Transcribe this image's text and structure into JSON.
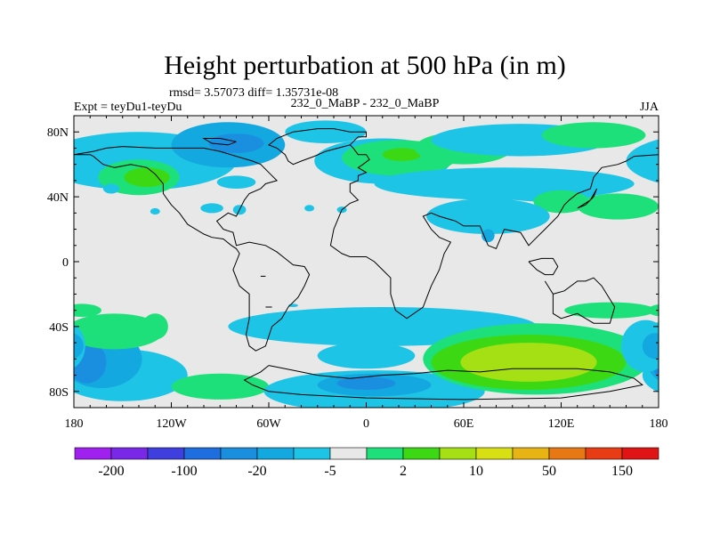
{
  "chart_data": {
    "type": "heatmap",
    "title": "Height perturbation at 500 hPa (in m)",
    "stats_text": "rmsd= 3.57073 diff= 1.35731e-08",
    "left_label": "Expt = teyDu1-teyDu",
    "center_label": "232_0_MaBP - 232_0_MaBP",
    "right_label": "JJA",
    "x_axis": {
      "range": [
        -180,
        180
      ],
      "ticks": [
        -180,
        -120,
        -60,
        0,
        60,
        120,
        180
      ],
      "tick_labels": [
        "180",
        "120W",
        "60W",
        "0",
        "60E",
        "120E",
        "180"
      ]
    },
    "y_axis": {
      "range": [
        -90,
        90
      ],
      "ticks": [
        80,
        40,
        0,
        -40,
        -80
      ],
      "tick_labels": [
        "80N",
        "40N",
        "0",
        "40S",
        "80S"
      ]
    },
    "colorbar": {
      "colors": [
        "#a020f0",
        "#7a28e8",
        "#3f3fe0",
        "#1e6ee0",
        "#1a8fe0",
        "#14a8e0",
        "#1ec4e6",
        "#e8e8e8",
        "#1ee07a",
        "#3cd814",
        "#a4e014",
        "#d8e014",
        "#e8b414",
        "#e87814",
        "#e83c14",
        "#e01414"
      ],
      "labels": [
        "-200",
        "-100",
        "-20",
        "-5",
        "2",
        "10",
        "50",
        "150"
      ]
    },
    "field": {
      "background": "#e8e8e8",
      "blobs": [
        {
          "lon": -140,
          "lat": 62,
          "rlon": 60,
          "rlat": 18,
          "level": 6
        },
        {
          "lon": -85,
          "lat": 72,
          "rlon": 35,
          "rlat": 14,
          "level": 5
        },
        {
          "lon": -80,
          "lat": 73,
          "rlon": 17,
          "rlat": 6,
          "level": 4
        },
        {
          "lon": -140,
          "lat": 52,
          "rlon": 25,
          "rlat": 11,
          "level": 8
        },
        {
          "lon": -135,
          "lat": 52,
          "rlon": 14,
          "rlat": 6,
          "level": 9
        },
        {
          "lon": -157,
          "lat": 45,
          "rlon": 5,
          "rlat": 3,
          "level": 6
        },
        {
          "lon": -130,
          "lat": 31,
          "rlon": 3,
          "rlat": 2,
          "level": 6
        },
        {
          "lon": -80,
          "lat": 49,
          "rlon": 12,
          "rlat": 4,
          "level": 6
        },
        {
          "lon": -25,
          "lat": 80,
          "rlon": 25,
          "rlat": 7,
          "level": 6
        },
        {
          "lon": 10,
          "lat": 62,
          "rlon": 42,
          "rlat": 14,
          "level": 6
        },
        {
          "lon": 20,
          "lat": 64,
          "rlon": 35,
          "rlat": 11,
          "level": 8
        },
        {
          "lon": 22,
          "lat": 66,
          "rlon": 12,
          "rlat": 4,
          "level": 9
        },
        {
          "lon": 60,
          "lat": 70,
          "rlon": 30,
          "rlat": 10,
          "level": 8
        },
        {
          "lon": 95,
          "lat": 75,
          "rlon": 55,
          "rlat": 10,
          "level": 6
        },
        {
          "lon": 140,
          "lat": 78,
          "rlon": 32,
          "rlat": 8,
          "level": 8
        },
        {
          "lon": 85,
          "lat": 48,
          "rlon": 80,
          "rlat": 10,
          "level": 6
        },
        {
          "lon": 110,
          "lat": 44,
          "rlon": 35,
          "rlat": 7,
          "level": 6
        },
        {
          "lon": 120,
          "lat": 37,
          "rlon": 17,
          "rlat": 7,
          "level": 8
        },
        {
          "lon": 155,
          "lat": 34,
          "rlon": 25,
          "rlat": 8,
          "level": 8
        },
        {
          "lon": -95,
          "lat": 33,
          "rlon": 7,
          "rlat": 3,
          "level": 6
        },
        {
          "lon": -78,
          "lat": 32,
          "rlon": 4,
          "rlat": 3,
          "level": 6
        },
        {
          "lon": -35,
          "lat": 33,
          "rlon": 3,
          "rlat": 2,
          "level": 6
        },
        {
          "lon": -15,
          "lat": 32,
          "rlon": 3,
          "rlat": 2,
          "level": 6
        },
        {
          "lon": 75,
          "lat": 28,
          "rlon": 38,
          "rlat": 11,
          "level": 6
        },
        {
          "lon": 75,
          "lat": 16,
          "rlon": 4,
          "rlat": 4,
          "level": 5
        },
        {
          "lon": 10,
          "lat": -40,
          "rlon": 95,
          "rlat": 12,
          "level": 6
        },
        {
          "lon": 0,
          "lat": -58,
          "rlon": 30,
          "rlat": 8,
          "level": 6
        },
        {
          "lon": -150,
          "lat": -70,
          "rlon": 40,
          "rlat": 16,
          "level": 6
        },
        {
          "lon": -163,
          "lat": -60,
          "rlon": 25,
          "rlat": 18,
          "level": 5
        },
        {
          "lon": -172,
          "lat": -62,
          "rlon": 12,
          "rlat": 13,
          "level": 4
        },
        {
          "lon": -90,
          "lat": -77,
          "rlon": 30,
          "rlat": 8,
          "level": 8
        },
        {
          "lon": -155,
          "lat": -43,
          "rlon": 30,
          "rlat": 11,
          "level": 8
        },
        {
          "lon": -130,
          "lat": -40,
          "rlon": 8,
          "rlat": 8,
          "level": 8
        },
        {
          "lon": -175,
          "lat": -30,
          "rlon": 12,
          "rlat": 4,
          "level": 8
        },
        {
          "lon": 5,
          "lat": -80,
          "rlon": 68,
          "rlat": 13,
          "level": 6
        },
        {
          "lon": 5,
          "lat": -76,
          "rlon": 35,
          "rlat": 7,
          "level": 5
        },
        {
          "lon": 0,
          "lat": -75,
          "rlon": 18,
          "rlat": 4,
          "level": 4
        },
        {
          "lon": 105,
          "lat": -60,
          "rlon": 70,
          "rlat": 22,
          "level": 8
        },
        {
          "lon": 100,
          "lat": -62,
          "rlon": 60,
          "rlat": 17,
          "level": 9
        },
        {
          "lon": 100,
          "lat": -62,
          "rlon": 42,
          "rlat": 12,
          "level": 10
        },
        {
          "lon": 150,
          "lat": -30,
          "rlon": 28,
          "rlat": 5,
          "level": 8
        },
        {
          "lon": 172,
          "lat": -52,
          "rlon": 15,
          "rlat": 16,
          "level": 6
        },
        {
          "lon": 178,
          "lat": -52,
          "rlon": 8,
          "rlat": 8,
          "level": 5
        },
        {
          "lon": -45,
          "lat": -27,
          "rlon": 3,
          "rlat": 1,
          "level": 6
        }
      ],
      "coast_segments": [
        [
          [
            -20,
            82
          ],
          [
            -10,
            80
          ],
          [
            0,
            80
          ],
          [
            0,
            77
          ],
          [
            -5,
            77
          ],
          [
            -10,
            72
          ],
          [
            -25,
            68
          ],
          [
            -32,
            65
          ],
          [
            -40,
            62
          ],
          [
            -45,
            60
          ],
          [
            -48,
            62
          ],
          [
            -50,
            66
          ],
          [
            -55,
            70
          ],
          [
            -60,
            72
          ],
          [
            -55,
            76
          ],
          [
            -45,
            80
          ],
          [
            -30,
            82
          ],
          [
            -20,
            82
          ]
        ],
        [
          [
            -10,
            72
          ],
          [
            -8,
            70
          ],
          [
            -5,
            66
          ],
          [
            0,
            66
          ],
          [
            2,
            63
          ],
          [
            -2,
            60
          ],
          [
            -5,
            58
          ],
          [
            0,
            55
          ],
          [
            -5,
            53
          ],
          [
            -5,
            50
          ],
          [
            -10,
            48
          ],
          [
            -10,
            43
          ],
          [
            -5,
            38
          ],
          [
            -10,
            36
          ],
          [
            -15,
            32
          ],
          [
            -20,
            20
          ],
          [
            -22,
            10
          ],
          [
            -15,
            5
          ],
          [
            -10,
            3
          ],
          [
            0,
            3
          ],
          [
            5,
            0
          ],
          [
            10,
            -5
          ],
          [
            15,
            -10
          ],
          [
            15,
            -20
          ],
          [
            18,
            -30
          ],
          [
            25,
            -35
          ],
          [
            35,
            -28
          ],
          [
            40,
            -15
          ],
          [
            45,
            -5
          ],
          [
            48,
            5
          ],
          [
            52,
            12
          ],
          [
            45,
            15
          ],
          [
            40,
            20
          ],
          [
            35,
            28
          ],
          [
            40,
            30
          ],
          [
            45,
            28
          ],
          [
            55,
            25
          ],
          [
            60,
            22
          ],
          [
            70,
            22
          ],
          [
            75,
            10
          ],
          [
            80,
            8
          ],
          [
            85,
            20
          ],
          [
            95,
            18
          ],
          [
            100,
            10
          ],
          [
            105,
            15
          ],
          [
            110,
            20
          ],
          [
            118,
            28
          ],
          [
            122,
            35
          ],
          [
            125,
            38
          ],
          [
            130,
            42
          ],
          [
            138,
            45
          ],
          [
            140,
            52
          ],
          [
            145,
            58
          ],
          [
            155,
            60
          ],
          [
            160,
            62
          ],
          [
            165,
            65
          ],
          [
            180,
            66
          ]
        ],
        [
          [
            -180,
            66
          ],
          [
            -170,
            66
          ],
          [
            -168,
            65
          ],
          [
            -162,
            60
          ],
          [
            -155,
            58
          ],
          [
            -145,
            60
          ],
          [
            -135,
            58
          ],
          [
            -130,
            54
          ],
          [
            -125,
            48
          ],
          [
            -125,
            42
          ],
          [
            -120,
            35
          ],
          [
            -115,
            30
          ],
          [
            -110,
            23
          ],
          [
            -105,
            20
          ],
          [
            -100,
            17
          ],
          [
            -95,
            15
          ],
          [
            -88,
            14
          ],
          [
            -83,
            10
          ],
          [
            -80,
            8
          ],
          [
            -78,
            5
          ],
          [
            -80,
            0
          ],
          [
            -82,
            -5
          ],
          [
            -78,
            -15
          ],
          [
            -72,
            -20
          ],
          [
            -72,
            -35
          ],
          [
            -74,
            -45
          ],
          [
            -72,
            -52
          ],
          [
            -68,
            -55
          ],
          [
            -62,
            -52
          ],
          [
            -58,
            -40
          ],
          [
            -52,
            -35
          ],
          [
            -48,
            -28
          ],
          [
            -42,
            -22
          ],
          [
            -38,
            -15
          ],
          [
            -35,
            -8
          ],
          [
            -38,
            -3
          ],
          [
            -45,
            -2
          ],
          [
            -50,
            2
          ],
          [
            -55,
            6
          ],
          [
            -62,
            10
          ],
          [
            -72,
            12
          ],
          [
            -80,
            10
          ],
          [
            -82,
            18
          ],
          [
            -88,
            20
          ],
          [
            -92,
            25
          ],
          [
            -85,
            30
          ],
          [
            -80,
            28
          ],
          [
            -78,
            32
          ],
          [
            -75,
            38
          ],
          [
            -72,
            42
          ],
          [
            -65,
            45
          ],
          [
            -62,
            48
          ],
          [
            -55,
            50
          ],
          [
            -60,
            55
          ],
          [
            -65,
            60
          ],
          [
            -70,
            62
          ],
          [
            -80,
            65
          ],
          [
            -90,
            68
          ],
          [
            -100,
            70
          ],
          [
            -115,
            70
          ],
          [
            -130,
            70
          ],
          [
            -150,
            71
          ],
          [
            -160,
            70
          ],
          [
            -168,
            68
          ],
          [
            -180,
            66
          ]
        ],
        [
          [
            -80,
            74
          ],
          [
            -90,
            76
          ],
          [
            -100,
            76
          ],
          [
            -95,
            73
          ],
          [
            -85,
            72
          ],
          [
            -80,
            74
          ]
        ],
        [
          [
            110,
            -12
          ],
          [
            115,
            -20
          ],
          [
            115,
            -32
          ],
          [
            120,
            -35
          ],
          [
            130,
            -32
          ],
          [
            140,
            -38
          ],
          [
            150,
            -38
          ],
          [
            153,
            -28
          ],
          [
            145,
            -15
          ],
          [
            140,
            -10
          ],
          [
            135,
            -12
          ],
          [
            130,
            -12
          ],
          [
            122,
            -18
          ],
          [
            115,
            -20
          ]
        ],
        [
          [
            100,
            0
          ],
          [
            105,
            -5
          ],
          [
            110,
            -8
          ],
          [
            115,
            -8
          ],
          [
            118,
            -3
          ],
          [
            115,
            2
          ],
          [
            108,
            2
          ],
          [
            100,
            0
          ]
        ],
        [
          [
            130,
            33
          ],
          [
            135,
            35
          ],
          [
            140,
            40
          ],
          [
            142,
            45
          ],
          [
            138,
            38
          ],
          [
            130,
            33
          ]
        ],
        [
          [
            -60,
            -64
          ],
          [
            -50,
            -66
          ],
          [
            -30,
            -70
          ],
          [
            -10,
            -72
          ],
          [
            10,
            -70
          ],
          [
            30,
            -69
          ],
          [
            50,
            -67
          ],
          [
            70,
            -68
          ],
          [
            90,
            -66
          ],
          [
            110,
            -66
          ],
          [
            130,
            -66
          ],
          [
            150,
            -68
          ],
          [
            165,
            -72
          ],
          [
            170,
            -76
          ],
          [
            150,
            -80
          ],
          [
            120,
            -84
          ],
          [
            60,
            -85
          ],
          [
            0,
            -84
          ],
          [
            -40,
            -82
          ],
          [
            -60,
            -80
          ],
          [
            -70,
            -76
          ],
          [
            -75,
            -73
          ],
          [
            -65,
            -68
          ],
          [
            -60,
            -64
          ]
        ],
        [
          [
            -62,
            -28
          ],
          [
            -58,
            -28
          ]
        ],
        [
          [
            -65,
            -9
          ],
          [
            -62,
            -9
          ]
        ]
      ]
    }
  }
}
